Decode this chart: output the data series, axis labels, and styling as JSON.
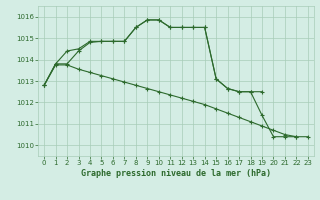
{
  "title": "Graphe pression niveau de la mer (hPa)",
  "line_color": "#2d6a2d",
  "bg_color": "#d4ede4",
  "grid_color": "#a8ccb8",
  "ylim": [
    1009.5,
    1016.5
  ],
  "xlim": [
    -0.5,
    23.5
  ],
  "yticks": [
    1010,
    1011,
    1012,
    1013,
    1014,
    1015,
    1016
  ],
  "xticks": [
    0,
    1,
    2,
    3,
    4,
    5,
    6,
    7,
    8,
    9,
    10,
    11,
    12,
    13,
    14,
    15,
    16,
    17,
    18,
    19,
    20,
    21,
    22,
    23
  ],
  "line1_x": [
    0,
    1,
    2,
    3,
    4,
    5,
    6,
    7,
    8,
    9,
    10,
    11,
    12,
    13,
    14,
    15,
    16,
    17,
    18,
    19
  ],
  "line1_y": [
    1012.8,
    1013.8,
    1013.8,
    1014.4,
    1014.8,
    1014.85,
    1014.85,
    1014.85,
    1015.5,
    1015.85,
    1015.85,
    1015.5,
    1015.5,
    1015.5,
    1015.5,
    1013.1,
    1012.65,
    1012.5,
    1012.5,
    1012.5
  ],
  "line2_x": [
    0,
    1,
    2,
    3,
    4,
    5,
    6,
    7,
    8,
    9,
    10,
    11,
    12,
    13,
    14,
    15,
    16,
    17,
    18,
    19,
    20,
    21,
    22
  ],
  "line2_y": [
    1012.8,
    1013.8,
    1014.4,
    1014.5,
    1014.85,
    1014.85,
    1014.85,
    1014.85,
    1015.5,
    1015.85,
    1015.85,
    1015.5,
    1015.5,
    1015.5,
    1015.5,
    1013.1,
    1012.65,
    1012.5,
    1012.5,
    1011.4,
    1010.4,
    1010.4,
    1010.4
  ],
  "line3_x": [
    0,
    1,
    2,
    3,
    4,
    5,
    6,
    7,
    8,
    9,
    10,
    11,
    12,
    13,
    14,
    15,
    16,
    17,
    18,
    19,
    20,
    21,
    22,
    23
  ],
  "line3_y": [
    1012.8,
    1013.75,
    1013.75,
    1013.55,
    1013.4,
    1013.25,
    1013.1,
    1012.95,
    1012.8,
    1012.65,
    1012.5,
    1012.35,
    1012.2,
    1012.05,
    1011.9,
    1011.7,
    1011.5,
    1011.3,
    1011.1,
    1010.9,
    1010.7,
    1010.5,
    1010.4,
    1010.4
  ]
}
